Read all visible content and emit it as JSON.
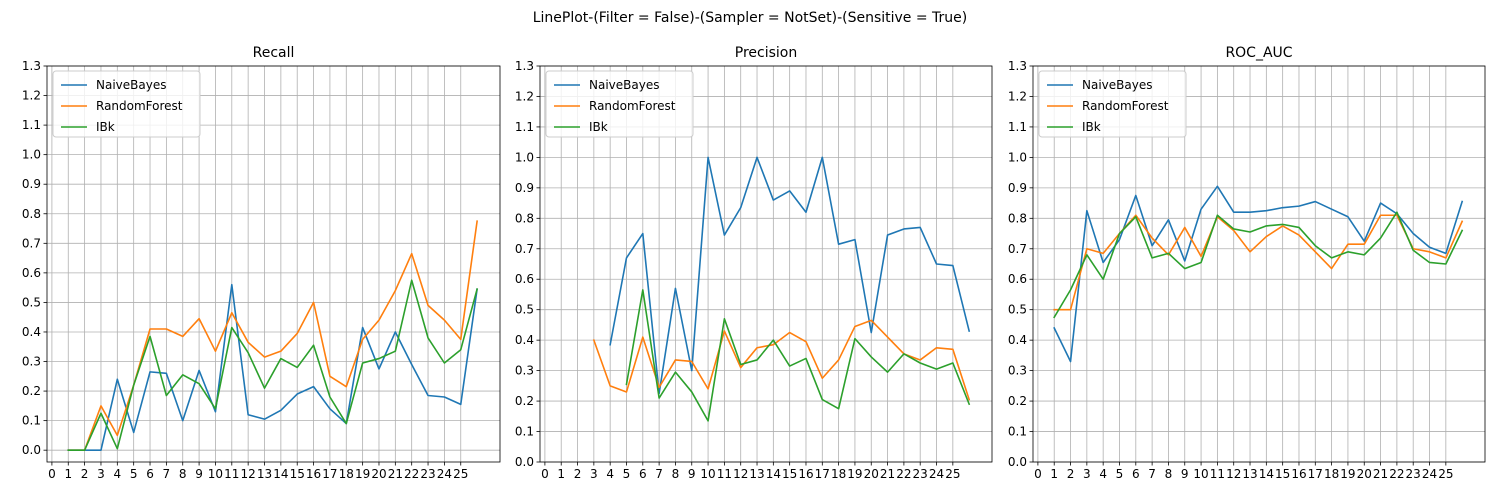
{
  "figure_title": "LinePlot-(Filter = False)-(Sampler = NotSet)-(Sensitive = True)",
  "chart_data": [
    {
      "type": "line",
      "title": "Recall",
      "xlabel": "",
      "ylabel": "",
      "xlim": [
        -0.3,
        27.4
      ],
      "ylim": [
        -0.04,
        1.3
      ],
      "x_ticks": [
        0,
        1,
        2,
        3,
        4,
        5,
        6,
        7,
        8,
        9,
        10,
        11,
        12,
        13,
        14,
        15,
        16,
        17,
        18,
        19,
        20,
        21,
        22,
        23,
        24,
        25
      ],
      "x_tick_labels": [
        "0",
        "1",
        "2",
        "3",
        "4",
        "5",
        "6",
        "7",
        "8",
        "9",
        "10",
        "11",
        "12",
        "13",
        "14",
        "15",
        "16",
        "17",
        "18",
        "19",
        "20",
        "21",
        "22",
        "23",
        "24",
        "25"
      ],
      "y_ticks": [
        0.0,
        0.1,
        0.2,
        0.3,
        0.4,
        0.5,
        0.6,
        0.7,
        0.8,
        0.9,
        1.0,
        1.1,
        1.2,
        1.3
      ],
      "y_tick_labels": [
        "0.0",
        "0.1",
        "0.2",
        "0.3",
        "0.4",
        "0.5",
        "0.6",
        "0.7",
        "0.8",
        "0.9",
        "1.0",
        "1.1",
        "1.2",
        "1.3"
      ],
      "grid": true,
      "legend_position": "top-left",
      "series": [
        {
          "name": "NaiveBayes",
          "color": "#1f77b4",
          "x": [
            1,
            2,
            3,
            4,
            5,
            6,
            7,
            8,
            9,
            10,
            11,
            12,
            13,
            14,
            15,
            16,
            17,
            18,
            19,
            20,
            21,
            22,
            23,
            24,
            25,
            26
          ],
          "y": [
            0.0,
            0.0,
            0.0,
            0.24,
            0.06,
            0.265,
            0.26,
            0.1,
            0.27,
            0.13,
            0.56,
            0.12,
            0.105,
            0.135,
            0.19,
            0.215,
            0.14,
            0.09,
            0.415,
            0.275,
            0.4,
            0.29,
            0.185,
            0.18,
            0.155,
            0.545
          ]
        },
        {
          "name": "RandomForest",
          "color": "#ff7f0e",
          "x": [
            1,
            2,
            3,
            4,
            5,
            6,
            7,
            8,
            9,
            10,
            11,
            12,
            13,
            14,
            15,
            16,
            17,
            18,
            19,
            20,
            21,
            22,
            23,
            24,
            25,
            26
          ],
          "y": [
            0.0,
            0.0,
            0.15,
            0.05,
            0.22,
            0.41,
            0.41,
            0.385,
            0.445,
            0.335,
            0.465,
            0.365,
            0.315,
            0.335,
            0.395,
            0.5,
            0.25,
            0.215,
            0.375,
            0.44,
            0.54,
            0.665,
            0.49,
            0.44,
            0.375,
            0.775
          ]
        },
        {
          "name": "IBk",
          "color": "#2ca02c",
          "x": [
            1,
            2,
            3,
            4,
            5,
            6,
            7,
            8,
            9,
            10,
            11,
            12,
            13,
            14,
            15,
            16,
            17,
            18,
            19,
            20,
            21,
            22,
            23,
            24,
            25,
            26
          ],
          "y": [
            0.0,
            0.0,
            0.125,
            0.005,
            0.22,
            0.385,
            0.185,
            0.255,
            0.225,
            0.14,
            0.415,
            0.33,
            0.21,
            0.31,
            0.28,
            0.355,
            0.18,
            0.09,
            0.295,
            0.31,
            0.335,
            0.575,
            0.38,
            0.295,
            0.34,
            0.545
          ]
        }
      ]
    },
    {
      "type": "line",
      "title": "Precision",
      "xlabel": "",
      "ylabel": "",
      "xlim": [
        -0.3,
        27.4
      ],
      "ylim": [
        0.0,
        1.3
      ],
      "x_ticks": [
        0,
        1,
        2,
        3,
        4,
        5,
        6,
        7,
        8,
        9,
        10,
        11,
        12,
        13,
        14,
        15,
        16,
        17,
        18,
        19,
        20,
        21,
        22,
        23,
        24,
        25
      ],
      "x_tick_labels": [
        "0",
        "1",
        "2",
        "3",
        "4",
        "5",
        "6",
        "7",
        "8",
        "9",
        "10",
        "11",
        "12",
        "13",
        "14",
        "15",
        "16",
        "17",
        "18",
        "19",
        "20",
        "21",
        "22",
        "23",
        "24",
        "25"
      ],
      "y_ticks": [
        0.0,
        0.1,
        0.2,
        0.3,
        0.4,
        0.5,
        0.6,
        0.7,
        0.8,
        0.9,
        1.0,
        1.1,
        1.2,
        1.3
      ],
      "y_tick_labels": [
        "0.0",
        "0.1",
        "0.2",
        "0.3",
        "0.4",
        "0.5",
        "0.6",
        "0.7",
        "0.8",
        "0.9",
        "1.0",
        "1.1",
        "1.2",
        "1.3"
      ],
      "grid": true,
      "legend_position": "top-left",
      "series": [
        {
          "name": "NaiveBayes",
          "color": "#1f77b4",
          "x": [
            4,
            5,
            6,
            7,
            8,
            9,
            10,
            11,
            12,
            13,
            14,
            15,
            16,
            17,
            18,
            19,
            20,
            21,
            22,
            23,
            24,
            25,
            26
          ],
          "y": [
            0.385,
            0.67,
            0.75,
            0.225,
            0.57,
            0.3,
            1.0,
            0.745,
            0.835,
            1.0,
            0.86,
            0.89,
            0.82,
            1.0,
            0.715,
            0.73,
            0.425,
            0.745,
            0.765,
            0.77,
            0.65,
            0.645,
            0.43
          ]
        },
        {
          "name": "RandomForest",
          "color": "#ff7f0e",
          "x": [
            3,
            4,
            5,
            6,
            7,
            8,
            9,
            10,
            11,
            12,
            13,
            14,
            15,
            16,
            17,
            18,
            19,
            20,
            21,
            22,
            23,
            24,
            25,
            26
          ],
          "y": [
            0.4,
            0.25,
            0.23,
            0.41,
            0.245,
            0.335,
            0.33,
            0.24,
            0.43,
            0.31,
            0.375,
            0.385,
            0.425,
            0.395,
            0.275,
            0.335,
            0.445,
            0.465,
            0.41,
            0.355,
            0.335,
            0.375,
            0.37,
            0.205
          ]
        },
        {
          "name": "IBk",
          "color": "#2ca02c",
          "x": [
            5,
            6,
            7,
            8,
            9,
            10,
            11,
            12,
            13,
            14,
            15,
            16,
            17,
            18,
            19,
            20,
            21,
            22,
            23,
            24,
            25,
            26
          ],
          "y": [
            0.255,
            0.565,
            0.21,
            0.295,
            0.23,
            0.135,
            0.47,
            0.32,
            0.335,
            0.4,
            0.315,
            0.34,
            0.205,
            0.175,
            0.405,
            0.345,
            0.295,
            0.355,
            0.325,
            0.305,
            0.325,
            0.19
          ]
        }
      ]
    },
    {
      "type": "line",
      "title": "ROC_AUC",
      "xlabel": "",
      "ylabel": "",
      "xlim": [
        -0.3,
        27.4
      ],
      "ylim": [
        0.0,
        1.3
      ],
      "x_ticks": [
        0,
        1,
        2,
        3,
        4,
        5,
        6,
        7,
        8,
        9,
        10,
        11,
        12,
        13,
        14,
        15,
        16,
        17,
        18,
        19,
        20,
        21,
        22,
        23,
        24,
        25
      ],
      "x_tick_labels": [
        "0",
        "1",
        "2",
        "3",
        "4",
        "5",
        "6",
        "7",
        "8",
        "9",
        "10",
        "11",
        "12",
        "13",
        "14",
        "15",
        "16",
        "17",
        "18",
        "19",
        "20",
        "21",
        "22",
        "23",
        "24",
        "25"
      ],
      "y_ticks": [
        0.0,
        0.1,
        0.2,
        0.3,
        0.4,
        0.5,
        0.6,
        0.7,
        0.8,
        0.9,
        1.0,
        1.1,
        1.2,
        1.3
      ],
      "y_tick_labels": [
        "0.0",
        "0.1",
        "0.2",
        "0.3",
        "0.4",
        "0.5",
        "0.6",
        "0.7",
        "0.8",
        "0.9",
        "1.0",
        "1.1",
        "1.2",
        "1.3"
      ],
      "grid": true,
      "legend_position": "top-left",
      "series": [
        {
          "name": "NaiveBayes",
          "color": "#1f77b4",
          "x": [
            1,
            2,
            3,
            4,
            5,
            6,
            7,
            8,
            9,
            10,
            11,
            12,
            13,
            14,
            15,
            16,
            17,
            18,
            19,
            20,
            21,
            22,
            23,
            24,
            25,
            26
          ],
          "y": [
            0.44,
            0.33,
            0.825,
            0.655,
            0.73,
            0.875,
            0.71,
            0.795,
            0.66,
            0.83,
            0.905,
            0.82,
            0.82,
            0.825,
            0.835,
            0.84,
            0.855,
            0.83,
            0.805,
            0.725,
            0.85,
            0.815,
            0.75,
            0.705,
            0.685,
            0.855
          ]
        },
        {
          "name": "RandomForest",
          "color": "#ff7f0e",
          "x": [
            1,
            2,
            3,
            4,
            5,
            6,
            7,
            8,
            9,
            10,
            11,
            12,
            13,
            14,
            15,
            16,
            17,
            18,
            19,
            20,
            21,
            22,
            23,
            24,
            25,
            26
          ],
          "y": [
            0.5,
            0.5,
            0.7,
            0.685,
            0.75,
            0.81,
            0.735,
            0.68,
            0.77,
            0.675,
            0.805,
            0.76,
            0.69,
            0.74,
            0.775,
            0.745,
            0.69,
            0.635,
            0.715,
            0.715,
            0.81,
            0.81,
            0.7,
            0.69,
            0.67,
            0.79
          ]
        },
        {
          "name": "IBk",
          "color": "#2ca02c",
          "x": [
            1,
            2,
            3,
            4,
            5,
            6,
            7,
            8,
            9,
            10,
            11,
            12,
            13,
            14,
            15,
            16,
            17,
            18,
            19,
            20,
            21,
            22,
            23,
            24,
            25,
            26
          ],
          "y": [
            0.475,
            0.565,
            0.68,
            0.6,
            0.75,
            0.805,
            0.67,
            0.685,
            0.635,
            0.655,
            0.81,
            0.765,
            0.755,
            0.775,
            0.78,
            0.77,
            0.71,
            0.67,
            0.69,
            0.68,
            0.735,
            0.82,
            0.695,
            0.655,
            0.65,
            0.76
          ]
        }
      ]
    }
  ]
}
